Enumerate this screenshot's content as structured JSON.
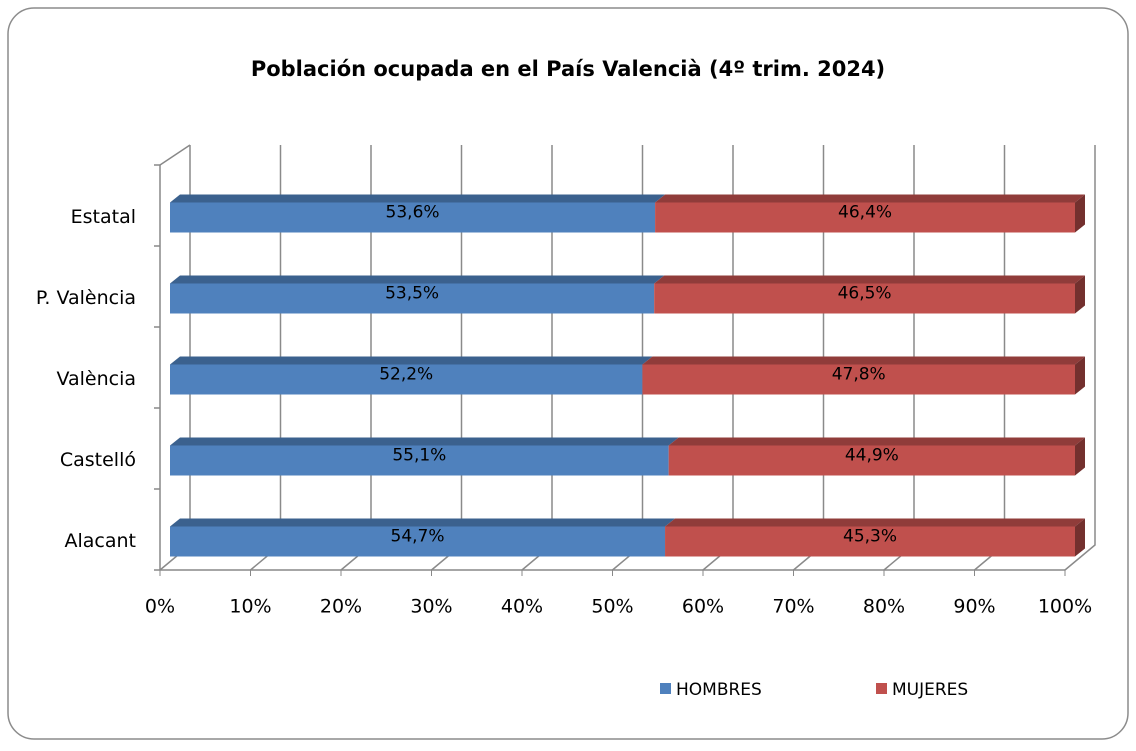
{
  "chart_data": {
    "type": "bar",
    "orientation": "horizontal",
    "stacked": true,
    "title": "Población ocupada en el País Valencià (4º trim. 2024)",
    "categories": [
      "Estatal",
      "P. València",
      "València",
      "Castelló",
      "Alacant"
    ],
    "series": [
      {
        "name": "HOMBRES",
        "color": "#4f81bd",
        "values": [
          53.6,
          53.5,
          52.2,
          55.1,
          54.7
        ],
        "value_labels": [
          "53,6%",
          "53,5%",
          "52,2%",
          "55,1%",
          "54,7%"
        ]
      },
      {
        "name": "MUJERES",
        "color": "#c0504d",
        "values": [
          46.4,
          46.5,
          47.8,
          44.9,
          45.3
        ],
        "value_labels": [
          "46,4%",
          "46,5%",
          "47,8%",
          "44,9%",
          "45,3%"
        ]
      }
    ],
    "xlim": [
      0,
      100
    ],
    "xticks": [
      {
        "value": 0,
        "label": "0%"
      },
      {
        "value": 10,
        "label": "10%"
      },
      {
        "value": 20,
        "label": "20%"
      },
      {
        "value": 30,
        "label": "30%"
      },
      {
        "value": 40,
        "label": "40%"
      },
      {
        "value": 50,
        "label": "50%"
      },
      {
        "value": 60,
        "label": "60%"
      },
      {
        "value": 70,
        "label": "70%"
      },
      {
        "value": 80,
        "label": "80%"
      },
      {
        "value": 90,
        "label": "90%"
      },
      {
        "value": 100,
        "label": "100%"
      }
    ],
    "grid": true,
    "legend": "bottom"
  }
}
